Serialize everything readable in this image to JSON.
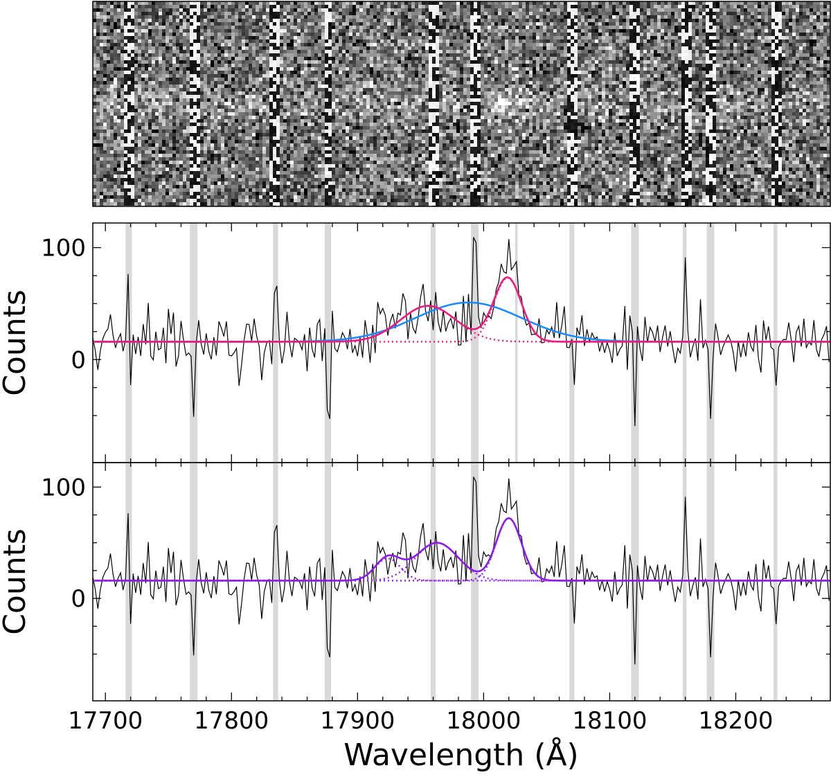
{
  "chart_data": [
    {
      "type": "heatmap",
      "description_id": "spectrum-2d",
      "x_range": [
        17690,
        18275
      ],
      "sky_line_columns": [
        17718,
        17770,
        17835,
        17877,
        17960,
        17993,
        18070,
        18120,
        18160,
        18180,
        18232
      ],
      "trace_center_wavelength": 18020,
      "colormap": "grayscale"
    },
    {
      "type": "line",
      "ylabel": "Counts",
      "xlim": [
        17690,
        18275
      ],
      "ylim": [
        -92,
        122
      ],
      "yticks": [
        0,
        100
      ],
      "yticklabels": [
        "0",
        "100"
      ],
      "baseline": 16,
      "sky_bands": [
        [
          17716,
          17721
        ],
        [
          17767,
          17773
        ],
        [
          17833,
          17837
        ],
        [
          17874,
          17879
        ],
        [
          17958,
          17962
        ],
        [
          17990,
          17996
        ],
        [
          18025,
          18027
        ],
        [
          18068,
          18072
        ],
        [
          18117,
          18123
        ],
        [
          18158,
          18161
        ],
        [
          18177,
          18183
        ],
        [
          18230,
          18233
        ]
      ],
      "series": [
        {
          "role": "data",
          "color": "#000000",
          "style": "step"
        },
        {
          "role": "single-broad-fit",
          "color": "#1a8cff",
          "style": "solid",
          "components": [
            {
              "amp": 35,
              "center": 17988,
              "sigma": 42
            }
          ]
        },
        {
          "role": "two-component-fit",
          "color": "#ee1a80",
          "style": "solid",
          "components": [
            {
              "amp": 32,
              "center": 17956,
              "sigma": 22
            },
            {
              "amp": 57,
              "center": 18019,
              "sigma": 11
            }
          ]
        }
      ]
    },
    {
      "type": "line",
      "xlabel": "Wavelength (Å)",
      "ylabel": "Counts",
      "xlim": [
        17690,
        18275
      ],
      "ylim": [
        -92,
        122
      ],
      "xticks": [
        17700,
        17800,
        17900,
        18000,
        18100,
        18200
      ],
      "xticklabels": [
        "17700",
        "17800",
        "17900",
        "18000",
        "18100",
        "18200"
      ],
      "yticks": [
        0,
        100
      ],
      "yticklabels": [
        "0",
        "100"
      ],
      "baseline": 16,
      "sky_bands": [
        [
          17716,
          17721
        ],
        [
          17767,
          17773
        ],
        [
          17833,
          17837
        ],
        [
          17874,
          17879
        ],
        [
          17958,
          17962
        ],
        [
          17990,
          17996
        ],
        [
          18068,
          18072
        ],
        [
          18117,
          18123
        ],
        [
          18158,
          18161
        ],
        [
          18177,
          18183
        ],
        [
          18230,
          18233
        ]
      ],
      "series": [
        {
          "role": "data",
          "color": "#000000",
          "style": "step"
        },
        {
          "role": "three-component-fit",
          "color": "#8f1aee",
          "style": "solid",
          "components": [
            {
              "amp": 20,
              "center": 17924,
              "sigma": 10
            },
            {
              "amp": 34,
              "center": 17963,
              "sigma": 17
            },
            {
              "amp": 56,
              "center": 18020,
              "sigma": 10
            }
          ]
        }
      ]
    }
  ]
}
